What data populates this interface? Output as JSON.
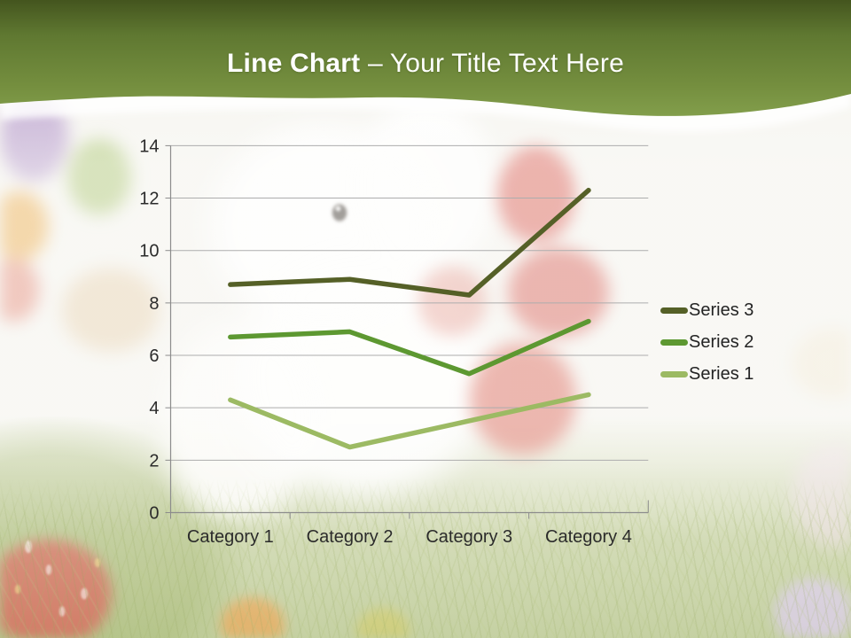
{
  "header": {
    "title_bold": "Line Chart",
    "title_rest": "– Your Title Text Here",
    "band_color_top": "#44551e",
    "band_color_bottom": "#819d4a"
  },
  "chart_data": {
    "type": "line",
    "title": "",
    "xlabel": "",
    "ylabel": "",
    "categories": [
      "Category 1",
      "Category 2",
      "Category 3",
      "Category 4"
    ],
    "series": [
      {
        "name": "Series 1",
        "values": [
          4.3,
          2.5,
          3.5,
          4.5
        ],
        "color": "#9cba63"
      },
      {
        "name": "Series 2",
        "values": [
          6.7,
          6.9,
          5.3,
          7.3
        ],
        "color": "#5d9831"
      },
      {
        "name": "Series 3",
        "values": [
          8.7,
          8.9,
          8.3,
          12.3
        ],
        "color": "#556027"
      }
    ],
    "ylim": [
      0,
      14
    ],
    "y_ticks": [
      0,
      2,
      4,
      6,
      8,
      10,
      12,
      14
    ],
    "grid": true,
    "gridline_color": "#adadad",
    "axis_color": "#8c8c8c",
    "label_color": "#2b2b2b",
    "legend_position": "right",
    "legend_order": [
      "Series 3",
      "Series 2",
      "Series 1"
    ]
  }
}
